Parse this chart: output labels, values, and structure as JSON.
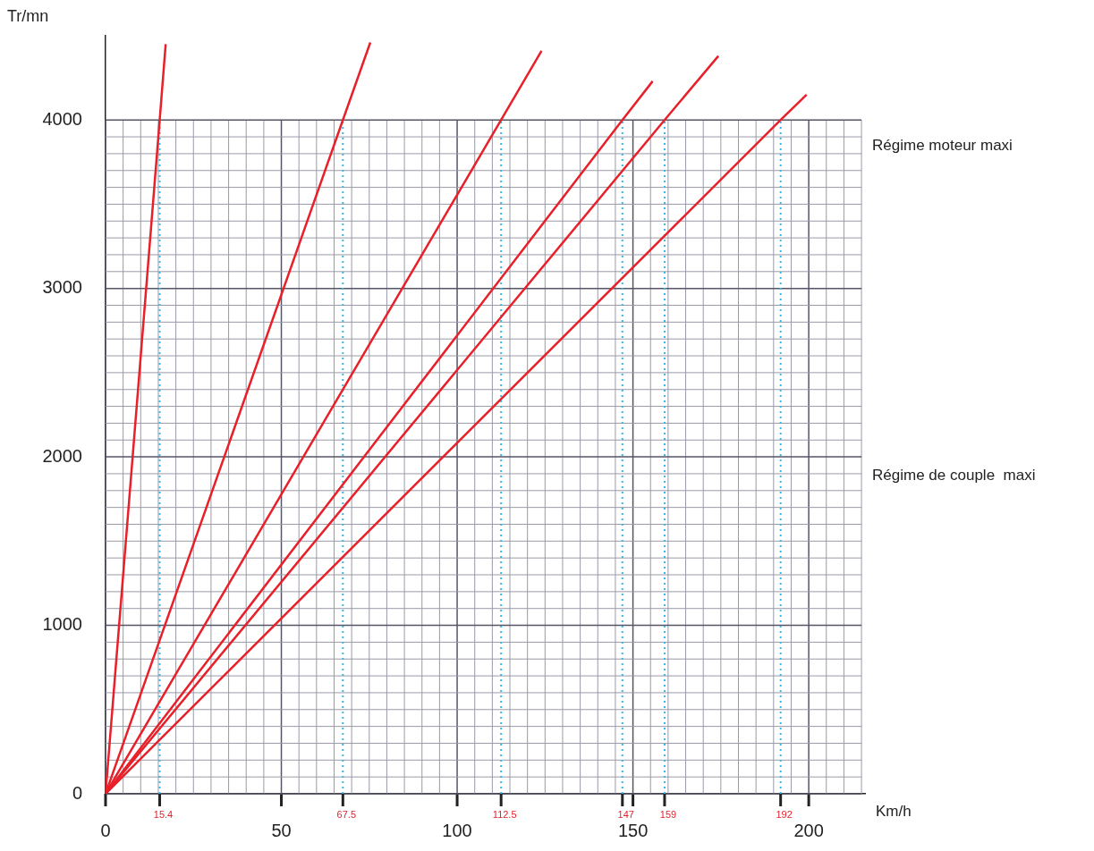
{
  "chart_data": {
    "type": "line",
    "xlabel": "Km/h",
    "ylabel": "Tr/mn",
    "xlim": [
      0,
      216
    ],
    "ylim": [
      0,
      4500
    ],
    "xticks": [
      0,
      {
        "value": 5,
        "label": null
      },
      {
        "value": 10,
        "label": null
      },
      {
        "value": 15,
        "label": null
      },
      {
        "value": 20,
        "label": null
      },
      {
        "value": 25,
        "label": null
      },
      {
        "value": 30,
        "label": null
      },
      {
        "value": 35,
        "label": null
      },
      {
        "value": 40,
        "label": null
      },
      {
        "value": 45,
        "label": null
      },
      50,
      {
        "value": 55,
        "label": null
      },
      {
        "value": 60,
        "label": null
      },
      {
        "value": 65,
        "label": null
      },
      {
        "value": 70,
        "label": null
      },
      {
        "value": 75,
        "label": null
      },
      {
        "value": 80,
        "label": null
      },
      {
        "value": 85,
        "label": null
      },
      {
        "value": 90,
        "label": null
      },
      {
        "value": 95,
        "label": null
      },
      100,
      {
        "value": 105,
        "label": null
      },
      {
        "value": 110,
        "label": null
      },
      {
        "value": 115,
        "label": null
      },
      {
        "value": 120,
        "label": null
      },
      {
        "value": 125,
        "label": null
      },
      {
        "value": 130,
        "label": null
      },
      {
        "value": 135,
        "label": null
      },
      {
        "value": 140,
        "label": null
      },
      {
        "value": 145,
        "label": null
      },
      150,
      {
        "value": 155,
        "label": null
      },
      {
        "value": 160,
        "label": null
      },
      {
        "value": 165,
        "label": null
      },
      {
        "value": 170,
        "label": null
      },
      {
        "value": 175,
        "label": null
      },
      {
        "value": 180,
        "label": null
      },
      {
        "value": 185,
        "label": null
      },
      {
        "value": 190,
        "label": null
      },
      {
        "value": 195,
        "label": null
      },
      200,
      {
        "value": 205,
        "label": null
      },
      {
        "value": 210,
        "label": null
      },
      {
        "value": 215,
        "label": null
      }
    ],
    "yticks": [
      0,
      {
        "value": 100,
        "label": null
      },
      {
        "value": 200,
        "label": null
      },
      {
        "value": 300,
        "label": null
      },
      {
        "value": 400,
        "label": null
      },
      {
        "value": 500,
        "label": null
      },
      {
        "value": 600,
        "label": null
      },
      {
        "value": 700,
        "label": null
      },
      {
        "value": 800,
        "label": null
      },
      {
        "value": 900,
        "label": null
      },
      1000,
      {
        "value": 1100,
        "label": null
      },
      {
        "value": 1200,
        "label": null
      },
      {
        "value": 1300,
        "label": null
      },
      {
        "value": 1400,
        "label": null
      },
      {
        "value": 1500,
        "label": null
      },
      {
        "value": 1600,
        "label": null
      },
      {
        "value": 1700,
        "label": null
      },
      {
        "value": 1800,
        "label": null
      },
      {
        "value": 1900,
        "label": null
      },
      2000,
      {
        "value": 2100,
        "label": null
      },
      {
        "value": 2200,
        "label": null
      },
      {
        "value": 2300,
        "label": null
      },
      {
        "value": 2400,
        "label": null
      },
      {
        "value": 2500,
        "label": null
      },
      {
        "value": 2600,
        "label": null
      },
      {
        "value": 2700,
        "label": null
      },
      {
        "value": 2800,
        "label": null
      },
      {
        "value": 2900,
        "label": null
      },
      3000,
      {
        "value": 3100,
        "label": null
      },
      {
        "value": 3200,
        "label": null
      },
      {
        "value": 3300,
        "label": null
      },
      {
        "value": 3400,
        "label": null
      },
      {
        "value": 3500,
        "label": null
      },
      {
        "value": 3600,
        "label": null
      },
      {
        "value": 3700,
        "label": null
      },
      {
        "value": 3800,
        "label": null
      },
      {
        "value": 3900,
        "label": null
      },
      4000
    ],
    "grid": true,
    "legend": false,
    "marker": "none",
    "line_style": "solid",
    "series": [
      {
        "color": "#e8202a",
        "x": [
          0,
          15.4,
          17.1
        ],
        "values": [
          0,
          4000,
          4450
        ]
      },
      {
        "color": "#e8202a",
        "x": [
          0,
          67.5,
          75.3
        ],
        "values": [
          0,
          4000,
          4460
        ]
      },
      {
        "color": "#e8202a",
        "x": [
          0,
          112.5,
          124
        ],
        "values": [
          0,
          4000,
          4410
        ]
      },
      {
        "color": "#e8202a",
        "x": [
          0,
          147,
          155.6
        ],
        "values": [
          0,
          4000,
          4230
        ]
      },
      {
        "color": "#e8202a",
        "x": [
          0,
          159,
          174.3
        ],
        "values": [
          0,
          4000,
          4380
        ]
      },
      {
        "color": "#e8202a",
        "x": [
          0,
          192,
          199.4
        ],
        "values": [
          0,
          4000,
          4150
        ]
      }
    ],
    "ref_lines": [
      {
        "axis": "x",
        "value": 15.4,
        "label": "15.4",
        "color": "#3cb4e6",
        "line_style": "dotted"
      },
      {
        "axis": "x",
        "value": 67.5,
        "label": "67.5",
        "color": "#3cb4e6",
        "line_style": "dotted"
      },
      {
        "axis": "x",
        "value": 112.5,
        "label": "112.5",
        "color": "#3cb4e6",
        "line_style": "dotted"
      },
      {
        "axis": "x",
        "value": 147,
        "label": "147",
        "color": "#3cb4e6",
        "line_style": "dotted"
      },
      {
        "axis": "x",
        "value": 159,
        "label": "159",
        "color": "#3cb4e6",
        "line_style": "dotted"
      },
      {
        "axis": "x",
        "value": 192,
        "label": "192",
        "color": "#3cb4e6",
        "line_style": "dotted"
      }
    ],
    "annotations": [
      "Régime moteur maxi",
      "Régime de couple  maxi"
    ]
  }
}
